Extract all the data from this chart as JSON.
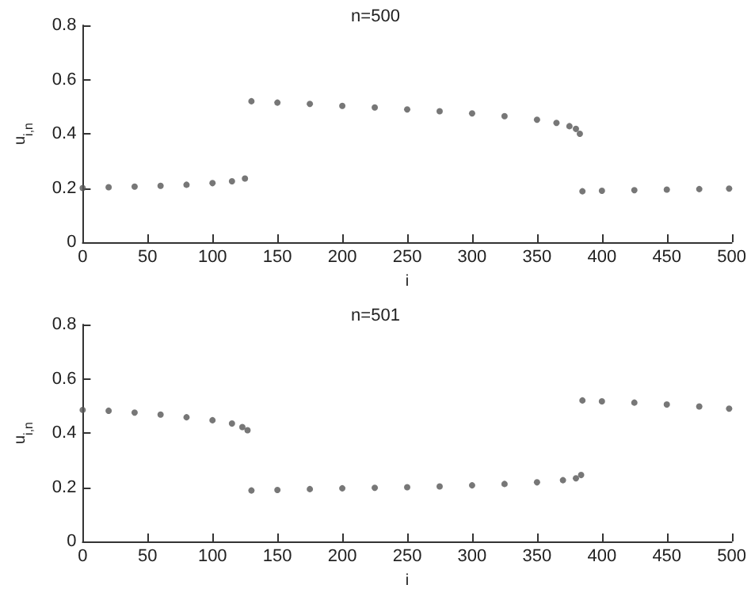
{
  "chart_data": [
    {
      "type": "scatter",
      "title": "n=500",
      "xlabel": "i",
      "ylabel": "u$_{i,n}$",
      "xlim": [
        0,
        500
      ],
      "xticks": [
        0,
        50,
        100,
        150,
        200,
        250,
        300,
        350,
        400,
        450,
        500
      ],
      "ylim": [
        0,
        0.8
      ],
      "yticks": [
        0,
        0.2,
        0.4,
        0.6,
        0.8
      ],
      "grid": false,
      "marker": "circle",
      "series": [
        {
          "color": "#555555",
          "x": [
            0,
            20,
            40,
            60,
            80,
            100,
            115,
            125,
            130,
            150,
            175,
            200,
            225,
            250,
            275,
            300,
            325,
            350,
            365,
            375,
            380,
            383,
            385,
            400,
            425,
            450,
            475,
            498
          ],
          "values": [
            0.2,
            0.203,
            0.205,
            0.208,
            0.212,
            0.218,
            0.225,
            0.235,
            0.52,
            0.515,
            0.51,
            0.503,
            0.497,
            0.49,
            0.483,
            0.475,
            0.465,
            0.452,
            0.44,
            0.428,
            0.418,
            0.4,
            0.188,
            0.19,
            0.192,
            0.194,
            0.196,
            0.198
          ]
        }
      ]
    },
    {
      "type": "scatter",
      "title": "n=501",
      "xlabel": "i",
      "ylabel": "u$_{i,n}$",
      "xlim": [
        0,
        500
      ],
      "xticks": [
        0,
        50,
        100,
        150,
        200,
        250,
        300,
        350,
        400,
        450,
        500
      ],
      "ylim": [
        0,
        0.8
      ],
      "yticks": [
        0,
        0.2,
        0.4,
        0.6,
        0.8
      ],
      "grid": false,
      "marker": "circle",
      "series": [
        {
          "color": "#555555",
          "x": [
            0,
            20,
            40,
            60,
            80,
            100,
            115,
            123,
            127,
            130,
            150,
            175,
            200,
            225,
            250,
            275,
            300,
            325,
            350,
            370,
            380,
            384,
            385,
            400,
            425,
            450,
            475,
            498
          ],
          "values": [
            0.485,
            0.482,
            0.475,
            0.468,
            0.458,
            0.447,
            0.435,
            0.422,
            0.41,
            0.188,
            0.19,
            0.193,
            0.196,
            0.198,
            0.2,
            0.203,
            0.207,
            0.212,
            0.218,
            0.226,
            0.233,
            0.245,
            0.52,
            0.517,
            0.512,
            0.505,
            0.498,
            0.49
          ]
        }
      ]
    }
  ]
}
